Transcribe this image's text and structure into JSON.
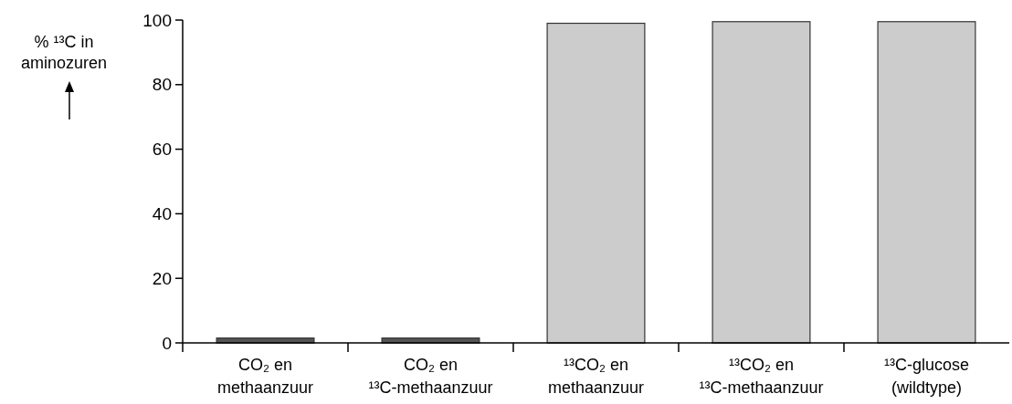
{
  "chart_data": {
    "type": "bar",
    "ylabel": "% ¹³C in\naminozuren",
    "categories": [
      "CO₂ en\nmethaanzuur",
      "CO₂ en\n¹³C-methaanzuur",
      "¹³CO₂ en\nmethaanzuur",
      "¹³CO₂ en\n¹³C-methaanzuur",
      "¹³C-glucose\n(wildtype)"
    ],
    "values": [
      1.5,
      1.5,
      99,
      99.5,
      99.5
    ],
    "colors": [
      "#555555",
      "#555555",
      "#cccccc",
      "#cccccc",
      "#cccccc"
    ],
    "ylim": [
      0,
      100
    ],
    "yticks": [
      0,
      20,
      40,
      60,
      80,
      100
    ],
    "grid": false
  }
}
